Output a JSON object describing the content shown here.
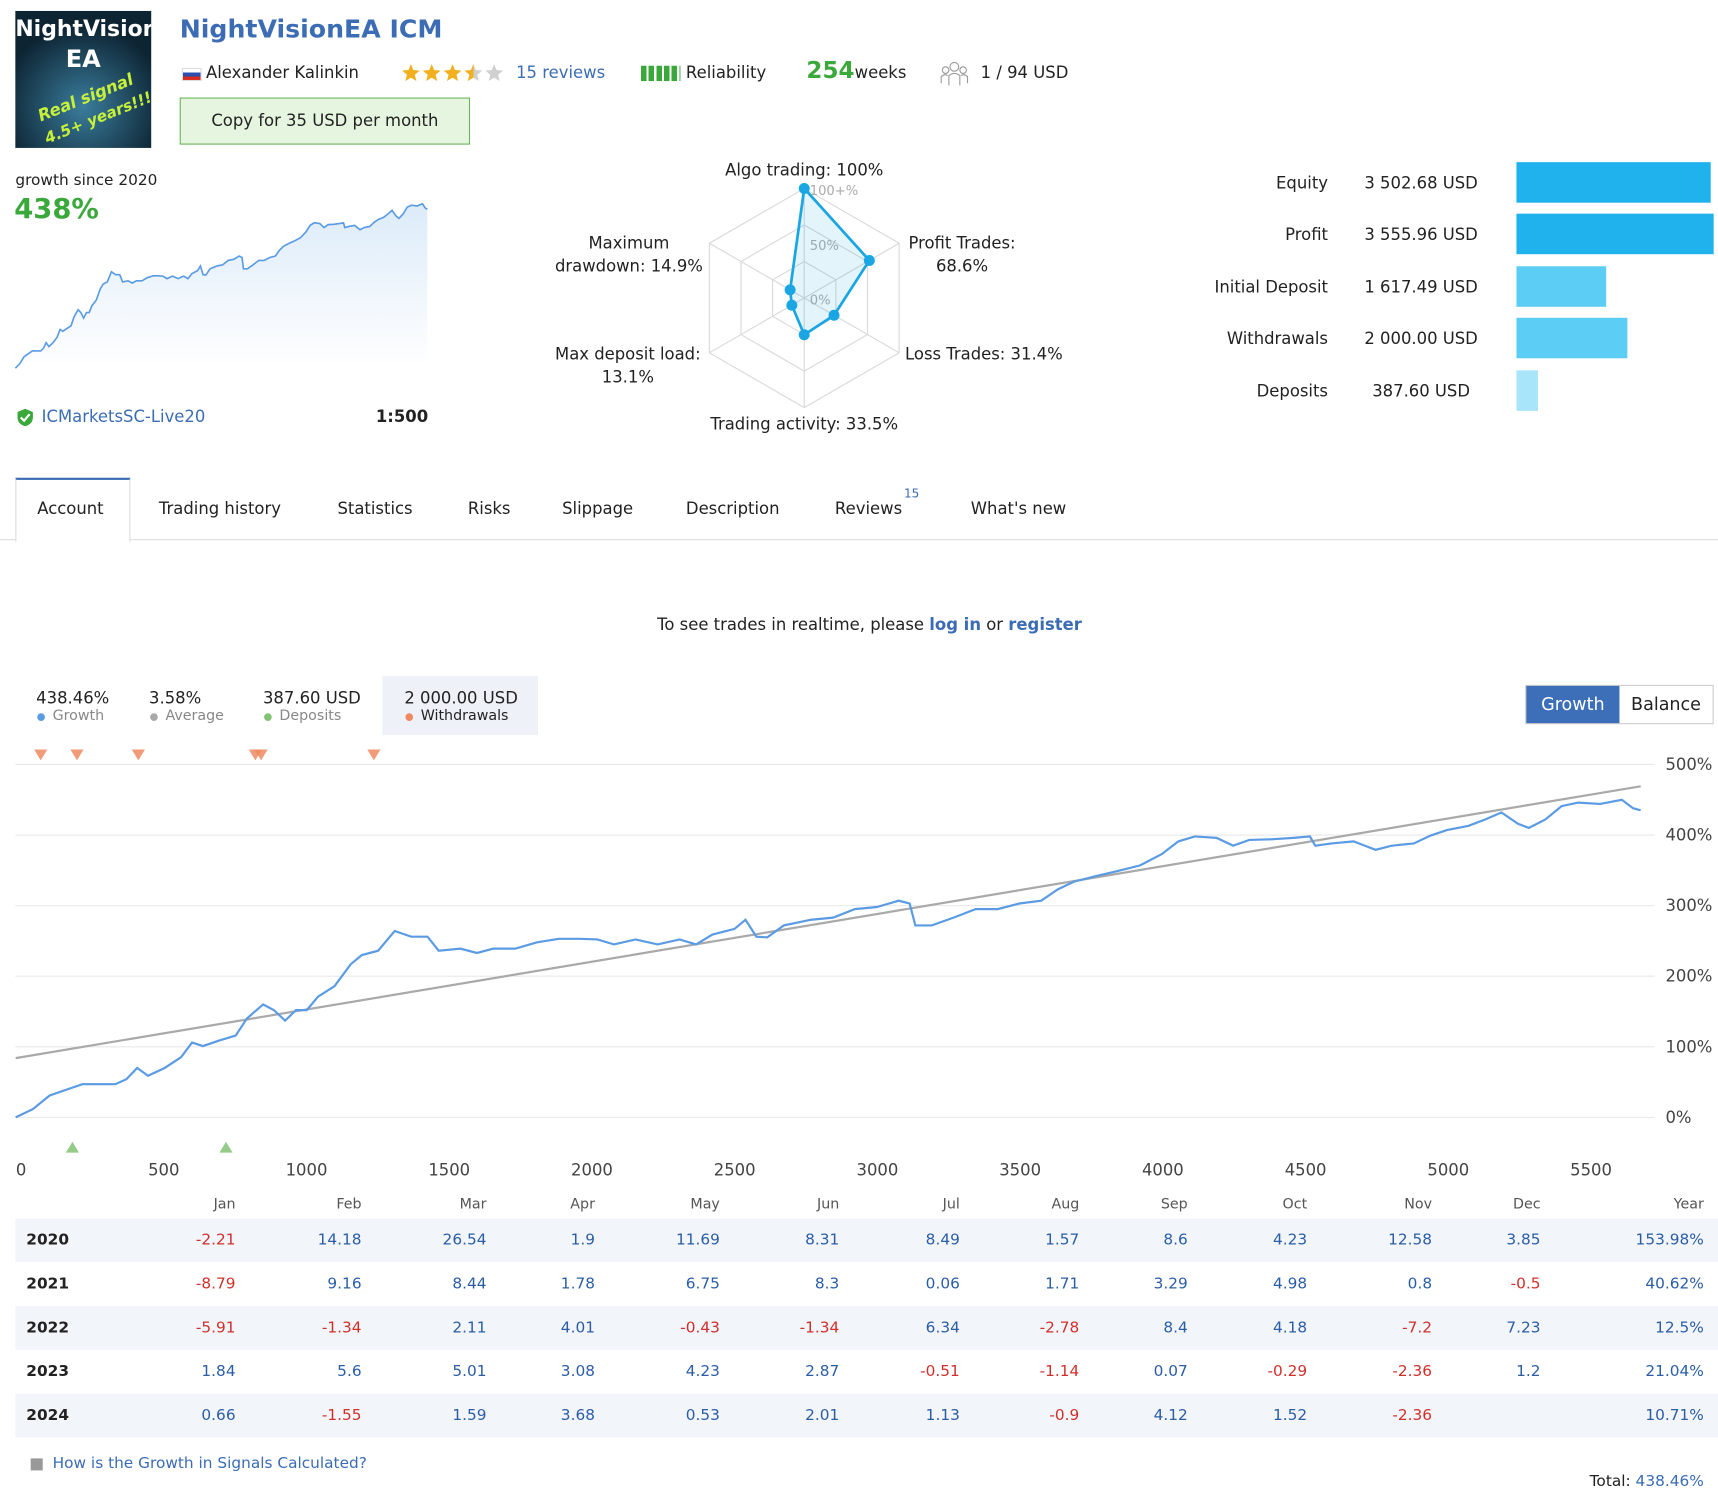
{
  "header": {
    "logo_lines": [
      "NightVision",
      "EA",
      "Real signal",
      "4.5+ years!!!"
    ],
    "title": "NightVisionEA ICM",
    "author": "Alexander Kalinkin",
    "rating": 3.5,
    "reviews": "15 reviews",
    "reliability": "Reliability",
    "weeks_value": "254",
    "weeks_label": "weeks",
    "subscribers": "1 / 94 USD",
    "copy_button": "Copy for 35 USD per month"
  },
  "summary": {
    "growth_label": "growth since 2020",
    "growth_value": "438%",
    "broker": "ICMarketsSC-Live20",
    "leverage": "1:500"
  },
  "tabs": [
    "Account",
    "Trading history",
    "Statistics",
    "Risks",
    "Slippage",
    "Description",
    "Reviews",
    "What's new"
  ],
  "reviews_badge": "15",
  "notice": {
    "before": "To see trades in realtime, please ",
    "login": "log in",
    "middle": " or ",
    "register": "register"
  },
  "chart_data": [
    {
      "type": "line",
      "view_buttons": [
        "Growth",
        "Balance"
      ],
      "series": [
        {
          "name": "Growth",
          "summary": "438.46%",
          "color": "#5b9be3",
          "x": [
            -19,
            42,
            100,
            157,
            215,
            273,
            330,
            369,
            407,
            445,
            503,
            560,
            599,
            637,
            695,
            752,
            791,
            848,
            886,
            925,
            963,
            1001,
            1040,
            1098,
            1155,
            1194,
            1251,
            1309,
            1367,
            1424,
            1463,
            1539,
            1597,
            1654,
            1731,
            1808,
            1884,
            1961,
            2019,
            2077,
            2153,
            2230,
            2307,
            2365,
            2422,
            2499,
            2538,
            2576,
            2614,
            2672,
            2768,
            2845,
            2921,
            2998,
            3075,
            3113,
            3133,
            3190,
            3267,
            3344,
            3421,
            3497,
            3574,
            3632,
            3689,
            3766,
            3843,
            3920,
            3996,
            4054,
            4112,
            4188,
            4246,
            4303,
            4380,
            4457,
            4515,
            4534,
            4591,
            4668,
            4707,
            4745,
            4802,
            4879,
            4937,
            4995,
            5071,
            5129,
            5186,
            5244,
            5282,
            5340,
            5397,
            5455,
            5532,
            5608,
            5647,
            5674
          ],
          "values": [
            0,
            12,
            31,
            39,
            47,
            47,
            47,
            54,
            70,
            59,
            70,
            85,
            106,
            101,
            109,
            116,
            140,
            160,
            152,
            137,
            152,
            152,
            171,
            186,
            217,
            230,
            236,
            264,
            256,
            256,
            236,
            239,
            233,
            239,
            239,
            248,
            253,
            253,
            252,
            245,
            252,
            245,
            252,
            245,
            259,
            267,
            280,
            256,
            255,
            272,
            280,
            283,
            295,
            298,
            307,
            303,
            272,
            272,
            283,
            295,
            295,
            303,
            307,
            323,
            334,
            342,
            349,
            357,
            373,
            391,
            398,
            396,
            385,
            393,
            394,
            396,
            398,
            385,
            388,
            391,
            385,
            379,
            385,
            388,
            399,
            407,
            413,
            422,
            432,
            416,
            410,
            422,
            441,
            446,
            444,
            450,
            438,
            435
          ]
        },
        {
          "name": "Average",
          "summary": "3.58%",
          "color": "#a9a9a9",
          "x": [
            -19,
            5674
          ],
          "values": [
            84,
            469
          ]
        }
      ],
      "events": [
        {
          "name": "Deposits",
          "summary": "387.60 USD",
          "color": "#82c274",
          "x": [
            180,
            718
          ]
        },
        {
          "name": "Withdrawals",
          "summary": "2 000.00 USD",
          "color": "#ef8a60",
          "x": [
            69,
            196,
            411,
            821,
            841,
            1236
          ]
        }
      ],
      "xlim": [
        -20,
        5730
      ],
      "xticks": [
        0,
        500,
        1000,
        1500,
        2000,
        2500,
        3000,
        3500,
        4000,
        4500,
        5000,
        5500
      ],
      "ylim": [
        -50,
        515
      ],
      "yticks": [
        {
          "value": 0,
          "label": "0%"
        },
        {
          "value": 100,
          "label": "100%"
        },
        {
          "value": 200,
          "label": "200%"
        },
        {
          "value": 300,
          "label": "300%"
        },
        {
          "value": 400,
          "label": "400%"
        },
        {
          "value": 500,
          "label": "500%"
        }
      ],
      "grid": true
    },
    {
      "type": "radar",
      "categories": [
        [
          "Algo trading: 100%"
        ],
        [
          "Profit Trades:",
          "68.6%"
        ],
        [
          "Loss Trades: 31.4%"
        ],
        [
          "Trading activity: 33.5%"
        ],
        [
          "Max deposit load:",
          "13.1%"
        ],
        [
          "Maximum",
          "drawdown: 14.9%"
        ]
      ],
      "values": [
        100,
        68.6,
        31.4,
        33.5,
        13.1,
        14.9
      ],
      "rlim": [
        0,
        100
      ],
      "rticks": [
        {
          "value": 0,
          "label": "0%"
        },
        {
          "value": 50,
          "label": "50%"
        },
        {
          "value": 100,
          "label": "100+%"
        }
      ],
      "color": "#1aa6e2"
    },
    {
      "type": "bar",
      "orientation": "horizontal",
      "categories": [
        "Equity",
        "Profit",
        "Initial Deposit",
        "Withdrawals",
        "Deposits"
      ],
      "values": [
        3502.68,
        3555.96,
        1617.49,
        2000.0,
        387.6
      ],
      "value_labels": [
        "3 502.68 USD",
        "3 555.96 USD",
        "1 617.49 USD",
        "2 000.00 USD",
        "387.60 USD"
      ],
      "colors": [
        "#1fb2ec",
        "#1fb2ec",
        "#5ccdf4",
        "#5ccdf4",
        "#a8e5fa"
      ]
    }
  ],
  "table": {
    "header": [
      "Jan",
      "Feb",
      "Mar",
      "Apr",
      "May",
      "Jun",
      "Jul",
      "Aug",
      "Sep",
      "Oct",
      "Nov",
      "Dec",
      "Year"
    ],
    "rows": [
      {
        "year": "2020",
        "values": [
          "-2.21",
          "14.18",
          "26.54",
          "1.9",
          "11.69",
          "8.31",
          "8.49",
          "1.57",
          "8.6",
          "4.23",
          "12.58",
          "3.85",
          "153.98%"
        ]
      },
      {
        "year": "2021",
        "values": [
          "-8.79",
          "9.16",
          "8.44",
          "1.78",
          "6.75",
          "8.3",
          "0.06",
          "1.71",
          "3.29",
          "4.98",
          "0.8",
          "-0.5",
          "40.62%"
        ]
      },
      {
        "year": "2022",
        "values": [
          "-5.91",
          "-1.34",
          "2.11",
          "4.01",
          "-0.43",
          "-1.34",
          "6.34",
          "-2.78",
          "8.4",
          "4.18",
          "-7.2",
          "7.23",
          "12.5%"
        ]
      },
      {
        "year": "2023",
        "values": [
          "1.84",
          "5.6",
          "5.01",
          "3.08",
          "4.23",
          "2.87",
          "-0.51",
          "-1.14",
          "0.07",
          "-0.29",
          "-2.36",
          "1.2",
          "21.04%"
        ]
      },
      {
        "year": "2024",
        "values": [
          "0.66",
          "-1.55",
          "1.59",
          "3.68",
          "0.53",
          "2.01",
          "1.13",
          "-0.9",
          "4.12",
          "1.52",
          "-2.36",
          null,
          "10.71%"
        ]
      }
    ],
    "help": "How is the Growth in Signals Calculated?",
    "total_label": "Total:",
    "total_value": "438.46%"
  }
}
